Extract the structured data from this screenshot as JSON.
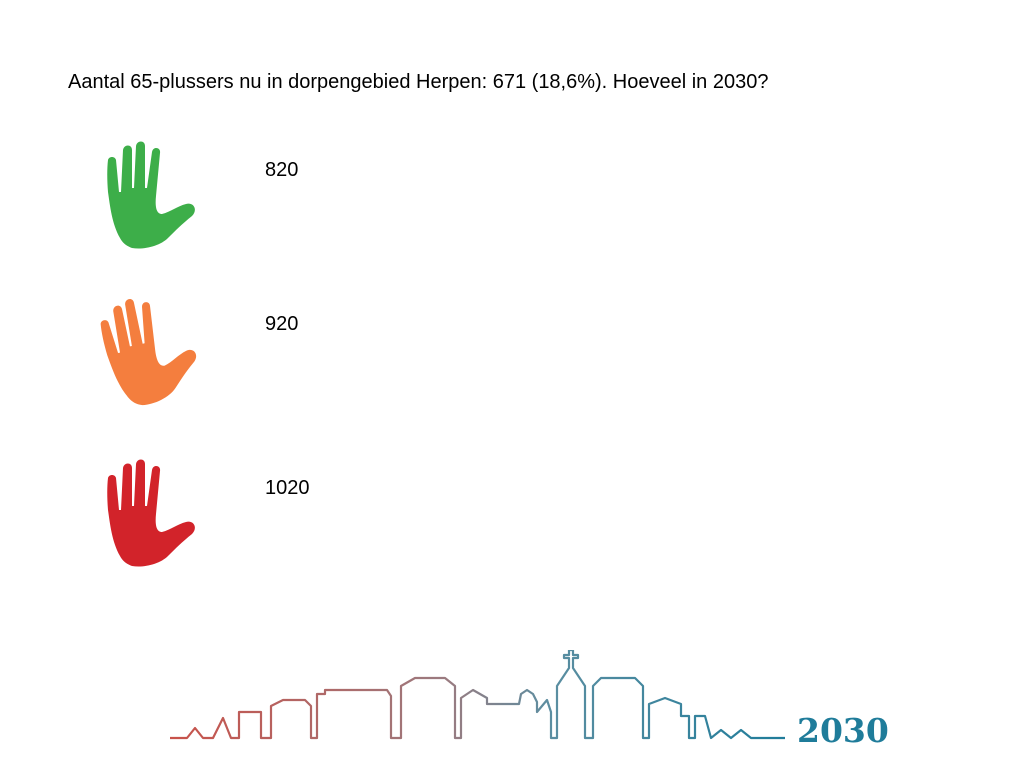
{
  "question": "Aantal 65-plussers nu in dorpengebied Herpen: 671 (18,6%). Hoeveel in 2030?",
  "options": [
    {
      "label": "820",
      "icon": "green-hand-icon",
      "color": "#3dae49"
    },
    {
      "label": "920",
      "icon": "orange-hand-icon",
      "color": "#f47e3e"
    },
    {
      "label": "1020",
      "icon": "red-hand-icon",
      "color": "#d2232a"
    }
  ],
  "logo": {
    "text": "2030",
    "colors": [
      "#c9524a",
      "#9a7b80",
      "#5b8ea1",
      "#1f7c9a"
    ]
  }
}
